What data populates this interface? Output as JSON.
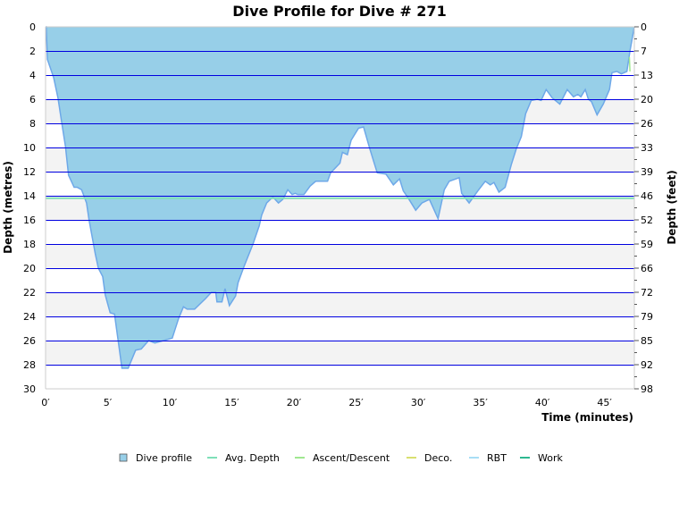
{
  "chart_data": {
    "type": "area",
    "title": "Dive Profile for Dive # 271",
    "xlabel": "Time (minutes)",
    "ylabel": "Depth (metres)",
    "y2label": "Depth (feet)",
    "xlim": [
      0,
      47.4
    ],
    "ylim": [
      0,
      30
    ],
    "y_inverted": true,
    "x_ticks": [
      "0′",
      "5′",
      "10′",
      "15′",
      "20′",
      "25′",
      "30′",
      "35′",
      "40′",
      "45′"
    ],
    "x_tick_values": [
      0,
      5,
      10,
      15,
      20,
      25,
      30,
      35,
      40,
      45
    ],
    "y_ticks": [
      0,
      2,
      4,
      6,
      8,
      10,
      12,
      14,
      16,
      18,
      20,
      22,
      24,
      26,
      28,
      30
    ],
    "y2_ticks": [
      "0",
      "7",
      "13",
      "20",
      "26",
      "33",
      "39",
      "46",
      "52",
      "59",
      "66",
      "72",
      "79",
      "85",
      "92",
      "98"
    ],
    "grid": true,
    "legend_position": "bottom",
    "legend": [
      {
        "label": "Dive profile",
        "color": "#97cfe8",
        "kind": "box"
      },
      {
        "label": "Avg. Depth",
        "color": "#7fe0b8",
        "kind": "line"
      },
      {
        "label": "Ascent/Descent",
        "color": "#a0e890",
        "kind": "line"
      },
      {
        "label": "Deco.",
        "color": "#d8e070",
        "kind": "line"
      },
      {
        "label": "RBT",
        "color": "#a8def5",
        "kind": "line"
      },
      {
        "label": "Work",
        "color": "#2eb890",
        "kind": "line"
      }
    ],
    "avg_depth": 14.2,
    "series": [
      {
        "name": "Dive profile",
        "color": "#97cfe8",
        "line_color": "#6ea8e8",
        "points": [
          [
            0,
            0
          ],
          [
            0.05,
            0
          ],
          [
            0.15,
            2.7
          ],
          [
            0.65,
            4.2
          ],
          [
            1.0,
            5.9
          ],
          [
            1.37,
            8.4
          ],
          [
            1.6,
            9.9
          ],
          [
            1.85,
            12.3
          ],
          [
            2.3,
            13.3
          ],
          [
            2.55,
            13.3
          ],
          [
            2.9,
            13.5
          ],
          [
            3.3,
            14.6
          ],
          [
            3.5,
            16
          ],
          [
            4.0,
            18.8
          ],
          [
            4.25,
            20
          ],
          [
            4.6,
            20.7
          ],
          [
            4.8,
            22.2
          ],
          [
            5.2,
            23.7
          ],
          [
            5.55,
            23.8
          ],
          [
            6.15,
            28.3
          ],
          [
            6.65,
            28.3
          ],
          [
            7.25,
            26.8
          ],
          [
            7.7,
            26.7
          ],
          [
            8.3,
            26.0
          ],
          [
            8.8,
            26.2
          ],
          [
            9.5,
            26.0
          ],
          [
            10.2,
            25.8
          ],
          [
            10.7,
            24.2
          ],
          [
            11.1,
            23.2
          ],
          [
            11.4,
            23.4
          ],
          [
            12.0,
            23.4
          ],
          [
            12.9,
            22.5
          ],
          [
            13.35,
            22.0
          ],
          [
            13.7,
            22.0
          ],
          [
            13.8,
            22.8
          ],
          [
            14.2,
            22.8
          ],
          [
            14.45,
            21.7
          ],
          [
            14.8,
            23.1
          ],
          [
            15.3,
            22.3
          ],
          [
            15.5,
            21.2
          ],
          [
            16.0,
            19.8
          ],
          [
            16.7,
            18.0
          ],
          [
            17.2,
            16.5
          ],
          [
            17.4,
            15.6
          ],
          [
            17.8,
            14.6
          ],
          [
            18.3,
            14.1
          ],
          [
            18.75,
            14.6
          ],
          [
            19.1,
            14.3
          ],
          [
            19.5,
            13.5
          ],
          [
            19.85,
            13.9
          ],
          [
            20.1,
            13.8
          ],
          [
            20.3,
            13.9
          ],
          [
            20.8,
            13.9
          ],
          [
            21.3,
            13.2
          ],
          [
            21.75,
            12.8
          ],
          [
            22.7,
            12.8
          ],
          [
            22.95,
            12.1
          ],
          [
            23.7,
            11.3
          ],
          [
            23.9,
            10.4
          ],
          [
            24.3,
            10.6
          ],
          [
            24.6,
            9.4
          ],
          [
            25.2,
            8.4
          ],
          [
            25.6,
            8.3
          ],
          [
            26.1,
            10.1
          ],
          [
            26.7,
            12.1
          ],
          [
            27.4,
            12.2
          ],
          [
            28.0,
            13.1
          ],
          [
            28.5,
            12.6
          ],
          [
            28.8,
            13.6
          ],
          [
            29.2,
            14.2
          ],
          [
            29.8,
            15.2
          ],
          [
            30.3,
            14.6
          ],
          [
            30.9,
            14.3
          ],
          [
            31.6,
            15.9
          ],
          [
            32.1,
            13.5
          ],
          [
            32.5,
            12.8
          ],
          [
            33.3,
            12.5
          ],
          [
            33.5,
            13.8
          ],
          [
            34.1,
            14.6
          ],
          [
            34.8,
            13.6
          ],
          [
            35.4,
            12.8
          ],
          [
            35.8,
            13.1
          ],
          [
            36.1,
            12.9
          ],
          [
            36.5,
            13.7
          ],
          [
            37.0,
            13.3
          ],
          [
            37.5,
            11.4
          ],
          [
            37.9,
            10.1
          ],
          [
            38.3,
            9.1
          ],
          [
            38.65,
            7.2
          ],
          [
            39.1,
            6.1
          ],
          [
            39.6,
            6.0
          ],
          [
            39.9,
            6.1
          ],
          [
            40.3,
            5.2
          ],
          [
            40.8,
            5.9
          ],
          [
            41.4,
            6.4
          ],
          [
            42.0,
            5.2
          ],
          [
            42.5,
            5.8
          ],
          [
            42.85,
            5.6
          ],
          [
            43.1,
            5.8
          ],
          [
            43.45,
            5.2
          ],
          [
            43.7,
            6.0
          ],
          [
            43.95,
            6.2
          ],
          [
            44.4,
            7.3
          ],
          [
            44.9,
            6.4
          ],
          [
            45.4,
            5.2
          ],
          [
            45.6,
            3.8
          ],
          [
            46.0,
            3.7
          ],
          [
            46.35,
            3.9
          ],
          [
            46.8,
            3.7
          ],
          [
            47.05,
            2.0
          ],
          [
            47.4,
            0
          ]
        ]
      }
    ]
  }
}
